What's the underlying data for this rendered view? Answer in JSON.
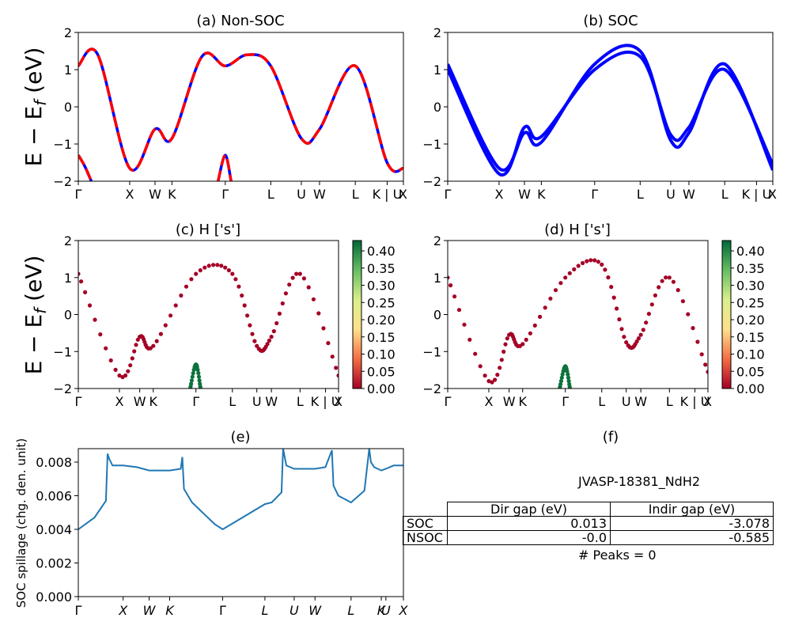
{
  "panels": {
    "a": {
      "title": "(a) Non-SOC"
    },
    "b": {
      "title": "(b) SOC"
    },
    "c": {
      "title": "(c)  H ['s']"
    },
    "d": {
      "title": "(d) H ['s']"
    },
    "e": {
      "title": "(e)"
    },
    "f": {
      "title": "(f)"
    }
  },
  "band_ylabel": "E − E_f (eV)",
  "band_ylim": [
    -2,
    2
  ],
  "band_yticks": [
    "2",
    "1",
    "0",
    "−1",
    "−2"
  ],
  "kpath_labels": [
    "Γ",
    "X",
    "W",
    "K",
    "Γ",
    "L",
    "U",
    "W",
    "L",
    "K | U",
    "X"
  ],
  "kpath_positions": [
    0,
    0.158,
    0.236,
    0.288,
    0.452,
    0.592,
    0.686,
    0.742,
    0.852,
    0.95,
    1.0
  ],
  "colors": {
    "nonsoc_red": "#ff0000",
    "nonsoc_blue": "#0000ff",
    "soc_blue": "#0000ff",
    "line_e": "#1f77b4"
  },
  "colorbar": {
    "ticks": [
      "0.40",
      "0.35",
      "0.30",
      "0.25",
      "0.20",
      "0.15",
      "0.10",
      "0.05",
      "0.00"
    ],
    "colormap": "RdYlGn",
    "range": [
      0,
      0.43
    ]
  },
  "spillage": {
    "ylabel": "SOC spillage (chg. den. unit)",
    "yticks": [
      "0.008",
      "0.006",
      "0.004",
      "0.002",
      "0.000"
    ],
    "ylim": [
      0,
      0.0088
    ],
    "xlabels": [
      "Γ",
      "X",
      "W",
      "K",
      "Γ",
      "L",
      "U",
      "W",
      "L",
      "K",
      "U",
      "X"
    ],
    "xpositions": [
      0,
      0.138,
      0.218,
      0.281,
      0.444,
      0.574,
      0.664,
      0.728,
      0.839,
      0.932,
      0.946,
      1.0
    ]
  },
  "table": {
    "id_label": "JVASP-18381_NdH2",
    "headers": [
      "Dir gap (eV)",
      "Indir gap (eV)"
    ],
    "rows": [
      {
        "label": "SOC",
        "dir": "0.013",
        "indir": "-3.078"
      },
      {
        "label": "NSOC",
        "dir": "-0.0",
        "indir": "-0.585"
      }
    ],
    "peaks": "# Peaks = 0"
  },
  "chart_data": [
    {
      "type": "line",
      "title": "(a) Non-SOC",
      "ylabel": "E − E_f (eV)",
      "ylim": [
        -2,
        2
      ],
      "xticks": [
        "Γ",
        "X",
        "W",
        "K",
        "Γ",
        "L",
        "U",
        "W",
        "L",
        "K | U",
        "X"
      ],
      "series": [
        {
          "x": [
            0,
            0.06,
            0.158,
            0.236,
            0.288,
            0.38,
            0.452,
            0.52,
            0.592,
            0.686,
            0.742,
            0.852,
            0.95,
            1.0
          ],
          "y": [
            1.1,
            1.4,
            -1.65,
            -0.6,
            -0.85,
            1.35,
            1.1,
            1.4,
            1.1,
            -0.85,
            -0.6,
            1.1,
            -1.5,
            -1.65
          ]
        },
        {
          "x": [
            0,
            0.02,
            0.04
          ],
          "y": [
            -1.3,
            -1.6,
            -2.0
          ]
        },
        {
          "x": [
            0.43,
            0.452,
            0.47
          ],
          "y": [
            -2.0,
            -1.3,
            -2.0
          ]
        }
      ]
    },
    {
      "type": "line",
      "title": "(b) SOC",
      "ylabel": "",
      "ylim": [
        -2,
        2
      ],
      "xticks": [
        "Γ",
        "X",
        "W",
        "K",
        "Γ",
        "L",
        "U",
        "W",
        "L",
        "K | U",
        "X"
      ],
      "series": [
        {
          "x": [
            0,
            0.158,
            0.236,
            0.288,
            0.452,
            0.592,
            0.686,
            0.742,
            0.852,
            1.0
          ],
          "y": [
            1.0,
            -1.8,
            -0.55,
            -0.8,
            1.0,
            1.35,
            -0.75,
            -0.55,
            1.0,
            -1.55
          ]
        },
        {
          "x": [
            0,
            0.158,
            0.236,
            0.288,
            0.452,
            0.592,
            0.686,
            0.742,
            0.852,
            1.0
          ],
          "y": [
            1.15,
            -1.65,
            -0.7,
            -0.95,
            1.15,
            1.5,
            -0.9,
            -0.7,
            1.15,
            -1.7
          ]
        }
      ]
    },
    {
      "type": "scatter",
      "title": "(c)  H ['s']",
      "ylim": [
        -2,
        2
      ],
      "colorbar_range": [
        0,
        0.43
      ],
      "xticks": [
        "Γ",
        "X",
        "W",
        "K",
        "Γ",
        "L",
        "U",
        "W",
        "L",
        "K | U",
        "X"
      ],
      "series": [
        {
          "x": [
            0,
            0.158,
            0.236,
            0.288,
            0.452,
            0.592,
            0.686,
            0.742,
            0.852,
            1.0
          ],
          "y": [
            1.1,
            -1.65,
            -0.6,
            -0.85,
            1.1,
            1.1,
            -0.85,
            -0.6,
            1.1,
            -1.65
          ],
          "weight": 0.0
        },
        {
          "x": [
            0.43,
            0.452,
            0.47
          ],
          "y": [
            -2.0,
            -1.35,
            -2.0
          ],
          "weight": 0.42
        }
      ]
    },
    {
      "type": "scatter",
      "title": "(d) H ['s']",
      "ylim": [
        -2,
        2
      ],
      "colorbar_range": [
        0,
        0.43
      ],
      "xticks": [
        "Γ",
        "X",
        "W",
        "K",
        "Γ",
        "L",
        "U",
        "W",
        "L",
        "K | U",
        "X"
      ],
      "series": [
        {
          "x": [
            0,
            0.158,
            0.236,
            0.288,
            0.452,
            0.592,
            0.686,
            0.742,
            0.852,
            1.0
          ],
          "y": [
            1.0,
            -1.8,
            -0.55,
            -0.8,
            1.0,
            1.35,
            -0.75,
            -0.55,
            1.0,
            -1.55
          ],
          "weight": 0.0
        },
        {
          "x": [
            0.43,
            0.452,
            0.47
          ],
          "y": [
            -2.0,
            -1.4,
            -2.0
          ],
          "weight": 0.42
        }
      ]
    },
    {
      "type": "line",
      "title": "(e)",
      "ylabel": "SOC spillage (chg. den. unit)",
      "ylim": [
        0,
        0.0088
      ],
      "xticks": [
        "Γ",
        "X",
        "W",
        "K",
        "Γ",
        "L",
        "U",
        "W",
        "L",
        "K",
        "U",
        "X"
      ],
      "series": [
        {
          "x": [
            0,
            0.05,
            0.085,
            0.09,
            0.095,
            0.105,
            0.12,
            0.138,
            0.18,
            0.218,
            0.25,
            0.281,
            0.315,
            0.32,
            0.325,
            0.35,
            0.42,
            0.444,
            0.47,
            0.574,
            0.595,
            0.625,
            0.63,
            0.64,
            0.664,
            0.728,
            0.76,
            0.78,
            0.785,
            0.8,
            0.839,
            0.88,
            0.895,
            0.9,
            0.91,
            0.932,
            0.946,
            0.97,
            1.0
          ],
          "y": [
            0.004,
            0.0047,
            0.0057,
            0.0085,
            0.0082,
            0.0078,
            0.0078,
            0.0078,
            0.0077,
            0.0075,
            0.0075,
            0.0075,
            0.0076,
            0.0083,
            0.0064,
            0.0056,
            0.0043,
            0.004,
            0.0043,
            0.0055,
            0.0056,
            0.0062,
            0.0088,
            0.0078,
            0.0076,
            0.0076,
            0.0077,
            0.0087,
            0.0066,
            0.006,
            0.0056,
            0.0063,
            0.0088,
            0.008,
            0.0077,
            0.0075,
            0.0076,
            0.0078,
            0.0078
          ]
        }
      ]
    }
  ]
}
